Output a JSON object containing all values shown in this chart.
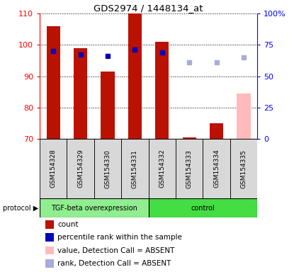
{
  "title": "GDS2974 / 1448134_at",
  "samples": [
    "GSM154328",
    "GSM154329",
    "GSM154330",
    "GSM154331",
    "GSM154332",
    "GSM154333",
    "GSM154334",
    "GSM154335"
  ],
  "count_values": [
    106,
    99,
    91.5,
    110,
    101,
    70.5,
    75,
    null
  ],
  "count_absent": [
    null,
    null,
    null,
    null,
    null,
    null,
    null,
    84.5
  ],
  "percentile_values_left": [
    98,
    97,
    96.5,
    98.5,
    97.5,
    null,
    null,
    null
  ],
  "percentile_absent_left": [
    null,
    null,
    null,
    null,
    null,
    94.5,
    94.5,
    96
  ],
  "ylim_left": [
    70,
    110
  ],
  "ylim_right": [
    0,
    100
  ],
  "yticks_left": [
    70,
    80,
    90,
    100,
    110
  ],
  "yticks_right": [
    0,
    25,
    50,
    75,
    100
  ],
  "ytick_labels_right": [
    "0",
    "25",
    "50",
    "75",
    "100%"
  ],
  "group1_label": "TGF-beta overexpression",
  "group2_label": "control",
  "group1_color": "#90ee90",
  "group2_color": "#44dd44",
  "sample_bg_color": "#d8d8d8",
  "bar_color_present": "#bb1100",
  "bar_color_absent": "#ffbbbb",
  "dot_color_present": "#0000bb",
  "dot_color_absent": "#aaaadd",
  "protocol_label": "protocol",
  "legend_items": [
    {
      "color": "#bb1100",
      "label": "count"
    },
    {
      "color": "#0000bb",
      "label": "percentile rank within the sample"
    },
    {
      "color": "#ffbbbb",
      "label": "value, Detection Call = ABSENT"
    },
    {
      "color": "#aaaadd",
      "label": "rank, Detection Call = ABSENT"
    }
  ],
  "n_group1": 4,
  "n_group2": 4
}
